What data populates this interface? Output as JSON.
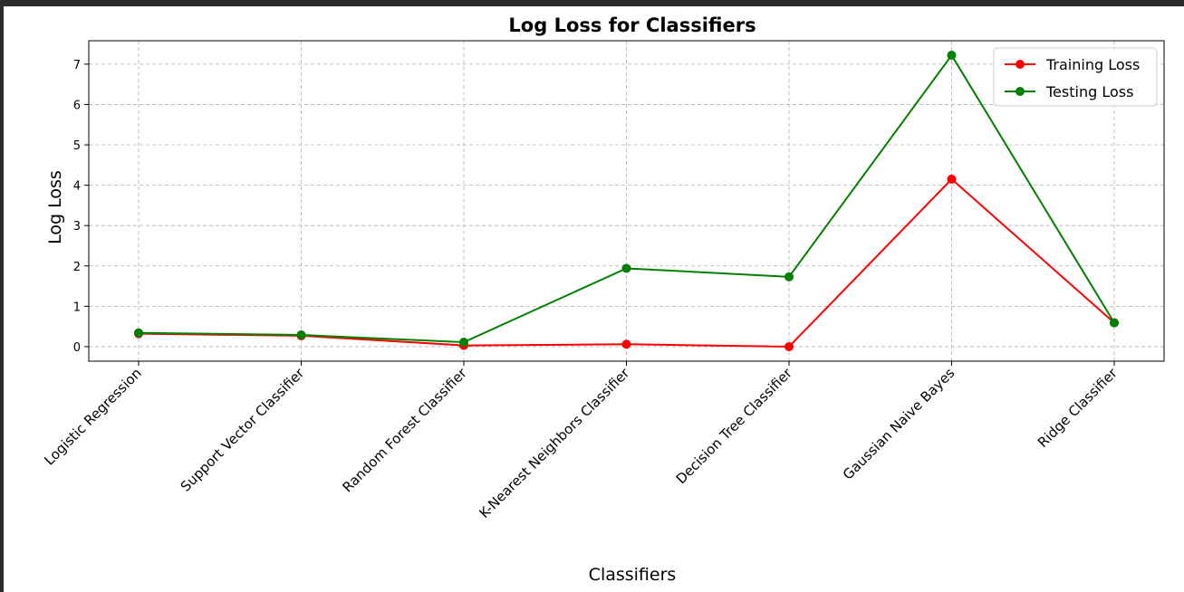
{
  "chart_data": {
    "type": "line",
    "title": "Log Loss for Classifiers",
    "xlabel": "Classifiers",
    "ylabel": "Log Loss",
    "categories": [
      "Logistic Regression",
      "Support Vector Classifier",
      "Random Forest Classifier",
      "K-Nearest Neighbors Classifier",
      "Decision Tree Classifier",
      "Gaussian Naive Bayes",
      "Ridge Classifier"
    ],
    "series": [
      {
        "name": "Training Loss",
        "color": "#ff0000",
        "values": [
          0.32,
          0.27,
          0.03,
          0.06,
          0.0,
          4.15,
          0.59
        ]
      },
      {
        "name": "Testing Loss",
        "color": "#008000",
        "values": [
          0.34,
          0.29,
          0.11,
          1.94,
          1.73,
          7.22,
          0.59
        ]
      }
    ],
    "ylim": [
      -0.36,
      7.58
    ],
    "yticks": [
      0,
      1,
      2,
      3,
      4,
      5,
      6,
      7
    ],
    "grid": true,
    "legend_position": "top-right"
  }
}
